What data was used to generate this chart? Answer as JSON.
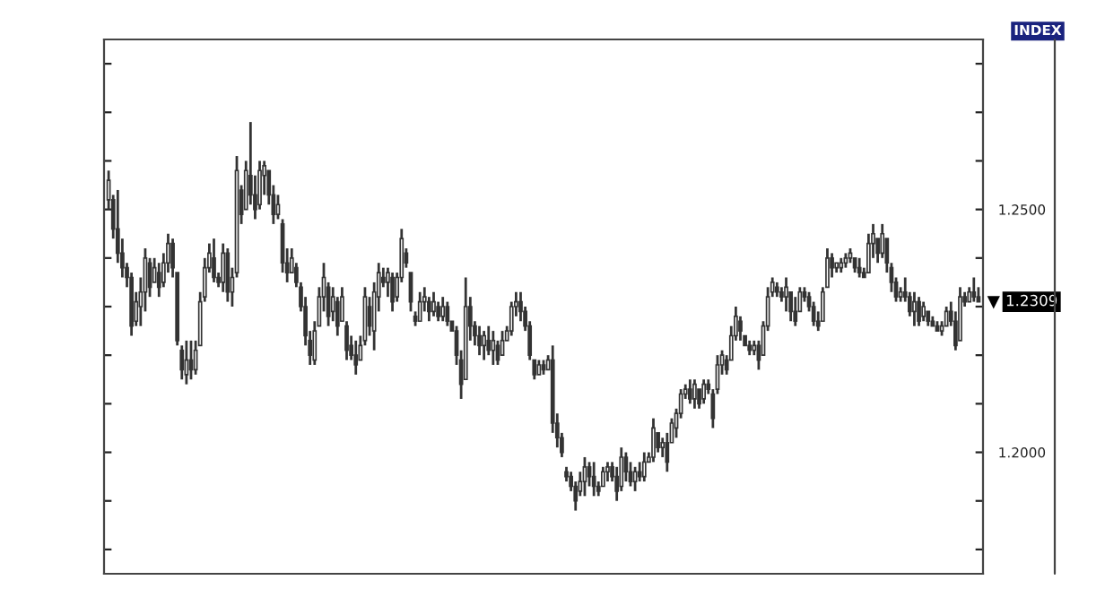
{
  "chart_data": {
    "type": "candlestick",
    "ylabel": "INDEX",
    "color": "#333333",
    "categories": [
      null,
      null,
      null,
      null,
      null,
      null,
      null,
      null,
      null,
      null,
      null,
      null,
      null,
      null,
      null,
      null,
      null,
      null,
      null,
      null,
      null,
      null,
      null,
      null,
      null,
      null,
      null,
      null,
      null,
      null,
      null,
      null,
      null,
      null,
      null,
      null,
      null,
      null,
      null,
      null,
      null,
      null,
      null,
      null,
      null,
      null,
      null,
      null,
      null,
      null,
      null,
      null,
      null,
      null,
      null,
      null,
      null,
      null,
      null,
      null,
      null,
      null,
      null,
      null,
      null,
      null,
      null,
      null,
      null,
      null,
      null,
      null,
      null,
      null,
      null,
      null,
      null,
      null,
      null,
      null,
      null,
      null,
      null,
      null,
      null,
      null,
      null,
      null,
      null,
      null,
      null,
      null,
      null,
      null,
      null,
      null,
      null,
      null,
      null,
      null,
      null,
      null,
      null,
      null,
      null,
      null,
      null,
      null,
      null,
      null,
      null,
      null,
      null,
      null,
      null,
      null,
      null,
      null,
      null,
      null,
      null,
      null,
      null,
      null,
      null,
      null,
      null,
      null,
      null,
      null,
      null,
      null,
      null,
      null,
      null,
      null,
      null,
      null,
      null,
      null,
      null,
      null,
      null,
      null,
      null,
      null,
      null,
      null,
      null,
      null,
      null,
      null,
      null,
      null,
      null,
      null,
      null,
      null,
      null,
      null,
      null,
      null,
      null,
      null,
      null,
      null,
      null,
      null,
      null,
      null,
      null,
      null,
      null,
      null,
      null,
      null,
      null,
      null,
      null,
      null,
      null,
      null,
      null,
      null,
      null,
      null,
      null,
      null,
      null,
      null,
      null
    ],
    "ohlc": [
      [
        1.252,
        1.258,
        1.25,
        1.256
      ],
      [
        1.252,
        1.253,
        1.244,
        1.246
      ],
      [
        1.246,
        1.254,
        1.239,
        1.241
      ],
      [
        1.241,
        1.244,
        1.236,
        1.238
      ],
      [
        1.238,
        1.239,
        1.234,
        1.236
      ],
      [
        1.236,
        1.237,
        1.224,
        1.226
      ],
      [
        1.227,
        1.233,
        1.226,
        1.231
      ],
      [
        1.23,
        1.236,
        1.226,
        1.233
      ],
      [
        1.233,
        1.242,
        1.229,
        1.24
      ],
      [
        1.239,
        1.24,
        1.232,
        1.234
      ],
      [
        1.235,
        1.24,
        1.235,
        1.238
      ],
      [
        1.237,
        1.239,
        1.232,
        1.234
      ],
      [
        1.235,
        1.241,
        1.234,
        1.239
      ],
      [
        1.239,
        1.245,
        1.237,
        1.243
      ],
      [
        1.243,
        1.244,
        1.236,
        1.238
      ],
      [
        1.237,
        1.237,
        1.222,
        1.223
      ],
      [
        1.221,
        1.222,
        1.215,
        1.217
      ],
      [
        1.216,
        1.223,
        1.214,
        1.219
      ],
      [
        1.219,
        1.223,
        1.215,
        1.217
      ],
      [
        1.217,
        1.223,
        1.216,
        1.221
      ],
      [
        1.222,
        1.233,
        1.222,
        1.231
      ],
      [
        1.232,
        1.24,
        1.231,
        1.238
      ],
      [
        1.238,
        1.243,
        1.237,
        1.241
      ],
      [
        1.24,
        1.244,
        1.235,
        1.236
      ],
      [
        1.236,
        1.237,
        1.234,
        1.235
      ],
      [
        1.235,
        1.243,
        1.233,
        1.241
      ],
      [
        1.241,
        1.242,
        1.231,
        1.233
      ],
      [
        1.233,
        1.238,
        1.23,
        1.236
      ],
      [
        1.237,
        1.261,
        1.236,
        1.258
      ],
      [
        1.254,
        1.255,
        1.247,
        1.249
      ],
      [
        1.25,
        1.26,
        1.25,
        1.258
      ],
      [
        1.257,
        1.268,
        1.251,
        1.253
      ],
      [
        1.253,
        1.257,
        1.248,
        1.25
      ],
      [
        1.251,
        1.26,
        1.25,
        1.258
      ],
      [
        1.257,
        1.26,
        1.253,
        1.259
      ],
      [
        1.258,
        1.258,
        1.251,
        1.253
      ],
      [
        1.253,
        1.255,
        1.247,
        1.249
      ],
      [
        1.249,
        1.253,
        1.248,
        1.251
      ],
      [
        1.247,
        1.248,
        1.237,
        1.239
      ],
      [
        1.239,
        1.242,
        1.235,
        1.237
      ],
      [
        1.237,
        1.242,
        1.237,
        1.24
      ],
      [
        1.238,
        1.239,
        1.234,
        1.235
      ],
      [
        1.234,
        1.235,
        1.229,
        1.23
      ],
      [
        1.23,
        1.232,
        1.222,
        1.224
      ],
      [
        1.223,
        1.225,
        1.218,
        1.22
      ],
      [
        1.219,
        1.227,
        1.218,
        1.225
      ],
      [
        1.226,
        1.234,
        1.226,
        1.232
      ],
      [
        1.232,
        1.239,
        1.229,
        1.236
      ],
      [
        1.234,
        1.235,
        1.226,
        1.228
      ],
      [
        1.229,
        1.234,
        1.227,
        1.232
      ],
      [
        1.231,
        1.232,
        1.224,
        1.226
      ],
      [
        1.227,
        1.234,
        1.227,
        1.232
      ],
      [
        1.226,
        1.227,
        1.219,
        1.221
      ],
      [
        1.222,
        1.224,
        1.219,
        1.22
      ],
      [
        1.22,
        1.223,
        1.216,
        1.218
      ],
      [
        1.219,
        1.224,
        1.219,
        1.222
      ],
      [
        1.223,
        1.234,
        1.222,
        1.232
      ],
      [
        1.23,
        1.232,
        1.224,
        1.226
      ],
      [
        1.225,
        1.235,
        1.221,
        1.233
      ],
      [
        1.232,
        1.239,
        1.229,
        1.237
      ],
      [
        1.236,
        1.238,
        1.234,
        1.235
      ],
      [
        1.235,
        1.238,
        1.232,
        1.237
      ],
      [
        1.236,
        1.237,
        1.229,
        1.231
      ],
      [
        1.232,
        1.237,
        1.231,
        1.236
      ],
      [
        1.236,
        1.246,
        1.235,
        1.244
      ],
      [
        1.241,
        1.242,
        1.238,
        1.239
      ],
      [
        1.237,
        1.237,
        1.229,
        1.231
      ],
      [
        1.228,
        1.229,
        1.226,
        1.227
      ],
      [
        1.227,
        1.233,
        1.227,
        1.231
      ],
      [
        1.231,
        1.234,
        1.229,
        1.232
      ],
      [
        1.231,
        1.232,
        1.227,
        1.229
      ],
      [
        1.229,
        1.233,
        1.228,
        1.231
      ],
      [
        1.23,
        1.231,
        1.227,
        1.228
      ],
      [
        1.228,
        1.232,
        1.227,
        1.23
      ],
      [
        1.23,
        1.231,
        1.226,
        1.227
      ],
      [
        1.227,
        1.227,
        1.225,
        1.225
      ],
      [
        1.225,
        1.226,
        1.218,
        1.22
      ],
      [
        1.219,
        1.221,
        1.211,
        1.214
      ],
      [
        1.215,
        1.236,
        1.215,
        1.23
      ],
      [
        1.23,
        1.232,
        1.223,
        1.226
      ],
      [
        1.226,
        1.227,
        1.222,
        1.224
      ],
      [
        1.224,
        1.226,
        1.22,
        1.222
      ],
      [
        1.222,
        1.225,
        1.219,
        1.224
      ],
      [
        1.223,
        1.226,
        1.22,
        1.221
      ],
      [
        1.221,
        1.225,
        1.218,
        1.223
      ],
      [
        1.222,
        1.223,
        1.218,
        1.219
      ],
      [
        1.22,
        1.225,
        1.22,
        1.223
      ],
      [
        1.223,
        1.226,
        1.223,
        1.225
      ],
      [
        1.225,
        1.231,
        1.224,
        1.23
      ],
      [
        1.23,
        1.233,
        1.228,
        1.231
      ],
      [
        1.231,
        1.233,
        1.227,
        1.229
      ],
      [
        1.229,
        1.23,
        1.225,
        1.226
      ],
      [
        1.226,
        1.227,
        1.219,
        1.22
      ],
      [
        1.219,
        1.219,
        1.215,
        1.216
      ],
      [
        1.216,
        1.219,
        1.216,
        1.218
      ],
      [
        1.218,
        1.219,
        1.216,
        1.217
      ],
      [
        1.217,
        1.22,
        1.217,
        1.219
      ],
      [
        1.219,
        1.222,
        1.204,
        1.206
      ],
      [
        1.206,
        1.208,
        1.201,
        1.203
      ],
      [
        1.203,
        1.204,
        1.199,
        1.2
      ],
      [
        1.196,
        1.197,
        1.194,
        1.195
      ],
      [
        1.195,
        1.196,
        1.192,
        1.193
      ],
      [
        1.193,
        1.194,
        1.188,
        1.19
      ],
      [
        1.192,
        1.196,
        1.191,
        1.194
      ],
      [
        1.194,
        1.199,
        1.191,
        1.197
      ],
      [
        1.197,
        1.198,
        1.193,
        1.195
      ],
      [
        1.195,
        1.198,
        1.191,
        1.193
      ],
      [
        1.193,
        1.194,
        1.191,
        1.192
      ],
      [
        1.193,
        1.197,
        1.193,
        1.196
      ],
      [
        1.196,
        1.198,
        1.194,
        1.197
      ],
      [
        1.197,
        1.198,
        1.194,
        1.195
      ],
      [
        1.195,
        1.197,
        1.19,
        1.192
      ],
      [
        1.193,
        1.201,
        1.192,
        1.199
      ],
      [
        1.199,
        1.2,
        1.194,
        1.196
      ],
      [
        1.196,
        1.198,
        1.193,
        1.194
      ],
      [
        1.194,
        1.197,
        1.192,
        1.196
      ],
      [
        1.196,
        1.198,
        1.194,
        1.195
      ],
      [
        1.195,
        1.2,
        1.194,
        1.198
      ],
      [
        1.198,
        1.2,
        1.198,
        1.199
      ],
      [
        1.199,
        1.207,
        1.198,
        1.205
      ],
      [
        1.204,
        1.204,
        1.2,
        1.201
      ],
      [
        1.201,
        1.203,
        1.199,
        1.202
      ],
      [
        1.202,
        1.204,
        1.196,
        1.198
      ],
      [
        1.202,
        1.207,
        1.202,
        1.206
      ],
      [
        1.205,
        1.209,
        1.203,
        1.208
      ],
      [
        1.208,
        1.213,
        1.207,
        1.212
      ],
      [
        1.212,
        1.214,
        1.211,
        1.213
      ],
      [
        1.213,
        1.215,
        1.21,
        1.211
      ],
      [
        1.211,
        1.215,
        1.209,
        1.214
      ],
      [
        1.213,
        1.213,
        1.209,
        1.21
      ],
      [
        1.211,
        1.215,
        1.21,
        1.214
      ],
      [
        1.214,
        1.215,
        1.212,
        1.213
      ],
      [
        1.212,
        1.213,
        1.205,
        1.207
      ],
      [
        1.213,
        1.22,
        1.212,
        1.218
      ],
      [
        1.218,
        1.221,
        1.216,
        1.22
      ],
      [
        1.219,
        1.22,
        1.216,
        1.217
      ],
      [
        1.219,
        1.226,
        1.219,
        1.224
      ],
      [
        1.224,
        1.23,
        1.223,
        1.228
      ],
      [
        1.227,
        1.228,
        1.223,
        1.225
      ],
      [
        1.224,
        1.224,
        1.222,
        1.222
      ],
      [
        1.222,
        1.223,
        1.22,
        1.221
      ],
      [
        1.221,
        1.223,
        1.22,
        1.222
      ],
      [
        1.222,
        1.223,
        1.217,
        1.219
      ],
      [
        1.22,
        1.227,
        1.22,
        1.226
      ],
      [
        1.226,
        1.234,
        1.225,
        1.232
      ],
      [
        1.233,
        1.236,
        1.232,
        1.235
      ],
      [
        1.234,
        1.235,
        1.232,
        1.233
      ],
      [
        1.233,
        1.234,
        1.231,
        1.232
      ],
      [
        1.232,
        1.236,
        1.229,
        1.234
      ],
      [
        1.233,
        1.233,
        1.227,
        1.229
      ],
      [
        1.229,
        1.232,
        1.226,
        1.227
      ],
      [
        1.229,
        1.234,
        1.229,
        1.233
      ],
      [
        1.233,
        1.234,
        1.231,
        1.232
      ],
      [
        1.232,
        1.233,
        1.229,
        1.23
      ],
      [
        1.23,
        1.231,
        1.226,
        1.227
      ],
      [
        1.227,
        1.229,
        1.225,
        1.226
      ],
      [
        1.227,
        1.234,
        1.227,
        1.233
      ],
      [
        1.234,
        1.242,
        1.234,
        1.24
      ],
      [
        1.24,
        1.241,
        1.236,
        1.238
      ],
      [
        1.238,
        1.239,
        1.237,
        1.239
      ],
      [
        1.238,
        1.24,
        1.237,
        1.239
      ],
      [
        1.239,
        1.241,
        1.238,
        1.24
      ],
      [
        1.24,
        1.242,
        1.239,
        1.241
      ],
      [
        1.24,
        1.24,
        1.237,
        1.238
      ],
      [
        1.238,
        1.24,
        1.236,
        1.237
      ],
      [
        1.237,
        1.238,
        1.236,
        1.236
      ],
      [
        1.237,
        1.245,
        1.237,
        1.243
      ],
      [
        1.243,
        1.247,
        1.24,
        1.245
      ],
      [
        1.244,
        1.244,
        1.239,
        1.241
      ],
      [
        1.241,
        1.247,
        1.24,
        1.245
      ],
      [
        1.244,
        1.244,
        1.237,
        1.239
      ],
      [
        1.238,
        1.239,
        1.233,
        1.235
      ],
      [
        1.235,
        1.236,
        1.231,
        1.232
      ],
      [
        1.232,
        1.234,
        1.231,
        1.233
      ],
      [
        1.233,
        1.236,
        1.231,
        1.232
      ],
      [
        1.232,
        1.233,
        1.228,
        1.229
      ],
      [
        1.229,
        1.233,
        1.226,
        1.231
      ],
      [
        1.231,
        1.232,
        1.226,
        1.227
      ],
      [
        1.228,
        1.231,
        1.227,
        1.23
      ],
      [
        1.229,
        1.229,
        1.226,
        1.227
      ],
      [
        1.227,
        1.228,
        1.226,
        1.226
      ],
      [
        1.226,
        1.227,
        1.225,
        1.225
      ],
      [
        1.225,
        1.227,
        1.224,
        1.226
      ],
      [
        1.226,
        1.23,
        1.226,
        1.229
      ],
      [
        1.229,
        1.231,
        1.226,
        1.227
      ],
      [
        1.227,
        1.229,
        1.221,
        1.222
      ],
      [
        1.223,
        1.234,
        1.223,
        1.232
      ],
      [
        1.232,
        1.233,
        1.23,
        1.231
      ],
      [
        1.231,
        1.234,
        1.231,
        1.233
      ],
      [
        1.233,
        1.236,
        1.231,
        1.232
      ],
      [
        1.232,
        1.234,
        1.231,
        1.231
      ]
    ],
    "ylim": [
      1.175,
      1.285
    ],
    "yticks": [
      {
        "value": 1.18,
        "label": null
      },
      {
        "value": 1.19,
        "label": null
      },
      {
        "value": 1.2,
        "label": "1.2000"
      },
      {
        "value": 1.21,
        "label": null
      },
      {
        "value": 1.22,
        "label": null
      },
      {
        "value": 1.23,
        "label": null
      },
      {
        "value": 1.24,
        "label": null
      },
      {
        "value": 1.25,
        "label": "1.2500"
      },
      {
        "value": 1.26,
        "label": null
      },
      {
        "value": 1.27,
        "label": null
      },
      {
        "value": 1.28,
        "label": null
      }
    ],
    "annotations": [
      "1.2309"
    ],
    "grid": false
  }
}
